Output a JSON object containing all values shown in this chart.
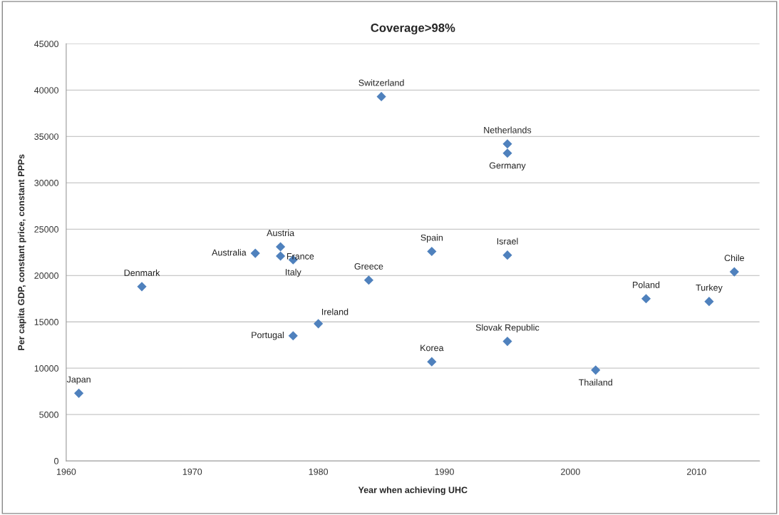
{
  "chart_data": {
    "type": "scatter",
    "title": "Coverage>98%",
    "xlabel": "Year when achieving UHC",
    "ylabel": "Per capita GDP, constant price, constant PPPs",
    "x": [
      1961,
      1966,
      1975,
      1977,
      1977,
      1978,
      1978,
      1980,
      1984,
      1985,
      1989,
      1989,
      1995,
      1995,
      1995,
      1995,
      2002,
      2006,
      2011,
      2013
    ],
    "series": [
      {
        "color": "#4f81bd",
        "values": [
          7300,
          18800,
          22400,
          23100,
          22100,
          21700,
          13500,
          14800,
          19500,
          39300,
          22600,
          10700,
          34200,
          33200,
          22200,
          12900,
          9800,
          17500,
          17200,
          20400
        ]
      }
    ],
    "annotations": [
      {
        "text": "Japan",
        "x": 1961,
        "y": 7300
      },
      {
        "text": "Denmark",
        "x": 1966,
        "y": 18800
      },
      {
        "text": "Australia",
        "x": 1975,
        "y": 22400
      },
      {
        "text": "Austria",
        "x": 1977,
        "y": 23100
      },
      {
        "text": "France",
        "x": 1977,
        "y": 22100
      },
      {
        "text": "Italy",
        "x": 1978,
        "y": 21700
      },
      {
        "text": "Portugal",
        "x": 1978,
        "y": 13500
      },
      {
        "text": "Ireland",
        "x": 1980,
        "y": 14800
      },
      {
        "text": "Greece",
        "x": 1984,
        "y": 19500
      },
      {
        "text": "Switzerland",
        "x": 1985,
        "y": 39300
      },
      {
        "text": "Spain",
        "x": 1989,
        "y": 22600
      },
      {
        "text": "Korea",
        "x": 1989,
        "y": 10700
      },
      {
        "text": "Netherlands",
        "x": 1995,
        "y": 34200
      },
      {
        "text": "Germany",
        "x": 1995,
        "y": 33200
      },
      {
        "text": "Israel",
        "x": 1995,
        "y": 22200
      },
      {
        "text": "Slovak Republic",
        "x": 1995,
        "y": 12900
      },
      {
        "text": "Thailand",
        "x": 2002,
        "y": 9800
      },
      {
        "text": "Poland",
        "x": 2006,
        "y": 17500
      },
      {
        "text": "Turkey",
        "x": 2011,
        "y": 17200
      },
      {
        "text": "Chile",
        "x": 2013,
        "y": 20400
      }
    ],
    "xlim": [
      1960,
      2015
    ],
    "xticks": [
      1960,
      1970,
      1980,
      1990,
      2000,
      2010
    ],
    "ylim": [
      0,
      45000
    ],
    "yticks": [
      0,
      5000,
      10000,
      15000,
      20000,
      25000,
      30000,
      35000,
      40000,
      45000
    ],
    "grid": "y",
    "marker": "diamond",
    "legend": false
  }
}
